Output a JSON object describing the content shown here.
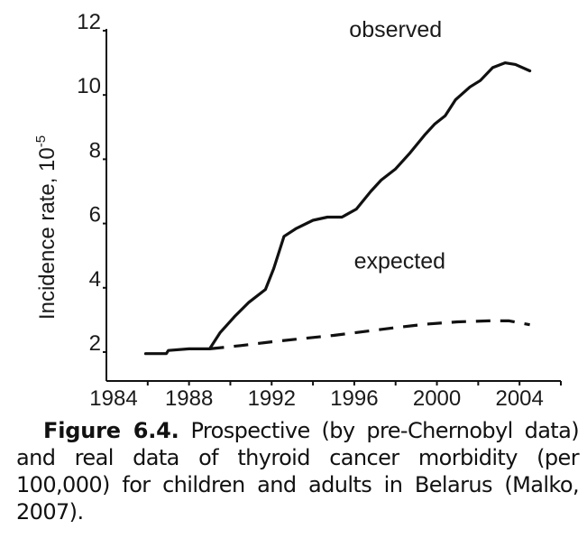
{
  "chart_data": {
    "type": "line",
    "title": "",
    "xlabel": "",
    "ylabel": "Incidence rate, 10",
    "ylabel_exponent": "-5",
    "xlim": [
      1984,
      2006
    ],
    "ylim": [
      1.1,
      12
    ],
    "x_ticks": [
      1984,
      1988,
      1992,
      1996,
      2000,
      2004
    ],
    "x_tick_labels": [
      "1984",
      "1988",
      "1992",
      "1996",
      "2000",
      "2004"
    ],
    "x_minor_ticks": [
      1986,
      1990,
      1994,
      1998,
      2002,
      2006
    ],
    "y_ticks": [
      2,
      4,
      6,
      8,
      10,
      12
    ],
    "y_tick_labels": [
      "2",
      "4",
      "6",
      "8",
      "10",
      "12"
    ],
    "grid": false,
    "series": [
      {
        "name": "observed",
        "style": "solid",
        "color": "#111111",
        "x": [
          1985.9,
          1986.9,
          1987.0,
          1988.0,
          1989.0,
          1989.5,
          1990.2,
          1990.9,
          1991.7,
          1992.1,
          1992.6,
          1993.2,
          1994.0,
          1994.7,
          1995.4,
          1996.1,
          1996.8,
          1997.3,
          1998.0,
          1998.7,
          1999.4,
          1999.9,
          2000.4,
          2000.9,
          2001.6,
          2002.1,
          2002.7,
          2003.3,
          2003.8,
          2004.5
        ],
        "y": [
          1.95,
          1.95,
          2.05,
          2.1,
          2.1,
          2.6,
          3.1,
          3.55,
          3.95,
          4.6,
          5.6,
          5.85,
          6.1,
          6.2,
          6.2,
          6.45,
          7.0,
          7.35,
          7.7,
          8.2,
          8.75,
          9.1,
          9.35,
          9.85,
          10.25,
          10.45,
          10.85,
          11.0,
          10.95,
          10.75
        ]
      },
      {
        "name": "expected",
        "style": "dashed",
        "color": "#111111",
        "x": [
          1989.0,
          1990.5,
          1992.0,
          1993.5,
          1995.0,
          1996.5,
          1998.0,
          1999.5,
          2001.0,
          2002.5,
          2003.5,
          2004.5
        ],
        "y": [
          2.1,
          2.2,
          2.32,
          2.42,
          2.52,
          2.64,
          2.76,
          2.87,
          2.94,
          2.97,
          2.97,
          2.85
        ]
      }
    ],
    "annotations": [
      {
        "text": "observed",
        "x": 1998.0,
        "y": 11.8
      },
      {
        "text": "expected",
        "x": 1998.2,
        "y": 4.6
      }
    ]
  },
  "caption": {
    "label": "Figure 6.4.",
    "text": "Prospective (by pre-Chernobyl data) and real data of thyroid cancer morbidity (per 100,000) for children and adults in Belarus (Malko, 2007)."
  }
}
